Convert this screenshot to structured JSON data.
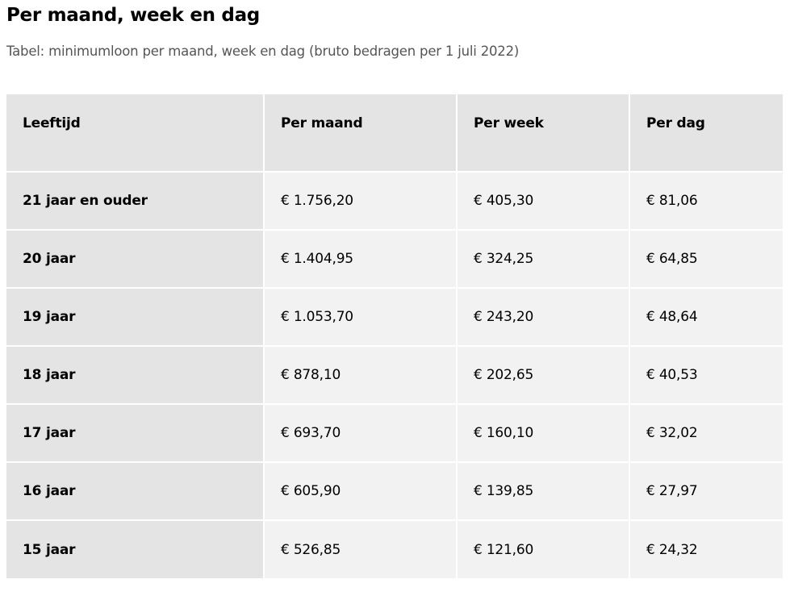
{
  "title": "Per maand, week en dag",
  "caption": "Tabel: minimumloon per maand, week en dag (bruto bedragen per 1 juli 2022)",
  "table": {
    "headers": [
      "Leeftijd",
      "Per maand",
      "Per week",
      "Per dag"
    ],
    "rows": [
      [
        "21 jaar en ouder",
        "€ 1.756,20",
        "€ 405,30",
        "€ 81,06"
      ],
      [
        "20 jaar",
        "€ 1.404,95",
        "€ 324,25",
        "€ 64,85"
      ],
      [
        "19 jaar",
        "€ 1.053,70",
        "€ 243,20",
        "€ 48,64"
      ],
      [
        "18 jaar",
        "€ 878,10",
        "€ 202,65",
        "€ 40,53"
      ],
      [
        "17 jaar",
        "€ 693,70",
        "€ 160,10",
        "€ 32,02"
      ],
      [
        "16 jaar",
        "€ 605,90",
        "€ 139,85",
        "€ 27,97"
      ],
      [
        "15 jaar",
        "€ 526,85",
        "€ 121,60",
        "€ 24,32"
      ]
    ]
  }
}
